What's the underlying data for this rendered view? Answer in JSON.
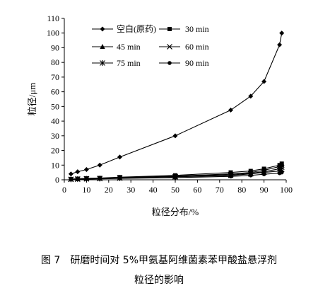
{
  "chart_data": {
    "type": "line",
    "xlabel": "粒径分布/%",
    "ylabel": "粒径/μm",
    "xlim": [
      0,
      100
    ],
    "ylim": [
      0,
      110
    ],
    "xticks": [
      0,
      10,
      20,
      30,
      40,
      50,
      60,
      70,
      80,
      90,
      100
    ],
    "yticks": [
      0,
      10,
      20,
      30,
      40,
      50,
      60,
      70,
      80,
      90,
      100,
      110
    ],
    "grid": false,
    "legend_position": "top-center",
    "series": [
      {
        "name": "空白(原药)",
        "marker": "diamond",
        "x": [
          3,
          6,
          10,
          16,
          25,
          50,
          75,
          84,
          90,
          97,
          98
        ],
        "y": [
          4,
          5.5,
          7,
          10,
          15.5,
          30,
          47.5,
          57,
          67,
          92,
          100
        ]
      },
      {
        "name": "30 min",
        "marker": "square",
        "x": [
          3,
          6,
          10,
          16,
          25,
          50,
          75,
          84,
          90,
          97,
          98
        ],
        "y": [
          0.5,
          0.7,
          1,
          1.2,
          1.8,
          3,
          5,
          6,
          7.5,
          10,
          11
        ]
      },
      {
        "name": "45 min",
        "marker": "triangle",
        "x": [
          3,
          6,
          10,
          16,
          25,
          50,
          75,
          84,
          90,
          97,
          98
        ],
        "y": [
          0.4,
          0.6,
          0.8,
          1,
          1.5,
          2.5,
          4,
          5,
          6.5,
          9,
          10
        ]
      },
      {
        "name": "60 min",
        "marker": "x",
        "x": [
          3,
          6,
          10,
          16,
          25,
          50,
          75,
          84,
          90,
          97,
          98
        ],
        "y": [
          0.3,
          0.5,
          0.7,
          0.9,
          1.3,
          2.2,
          3.5,
          4.5,
          5.5,
          7.5,
          8.5
        ]
      },
      {
        "name": "75 min",
        "marker": "asterisk",
        "x": [
          3,
          6,
          10,
          16,
          25,
          50,
          75,
          84,
          90,
          97,
          98
        ],
        "y": [
          0.3,
          0.4,
          0.6,
          0.8,
          1.1,
          2,
          3,
          4,
          5,
          6,
          7
        ]
      },
      {
        "name": "90 min",
        "marker": "circle",
        "x": [
          3,
          6,
          10,
          16,
          25,
          50,
          75,
          84,
          90,
          97,
          98
        ],
        "y": [
          0.2,
          0.3,
          0.5,
          0.6,
          0.9,
          1.5,
          2.3,
          3,
          3.8,
          4.5,
          5
        ]
      }
    ]
  },
  "caption": {
    "line1": "图 7　研磨时间对 5%甲氨基阿维菌素苯甲酸盐悬浮剂",
    "line2": "粒径的影响"
  }
}
